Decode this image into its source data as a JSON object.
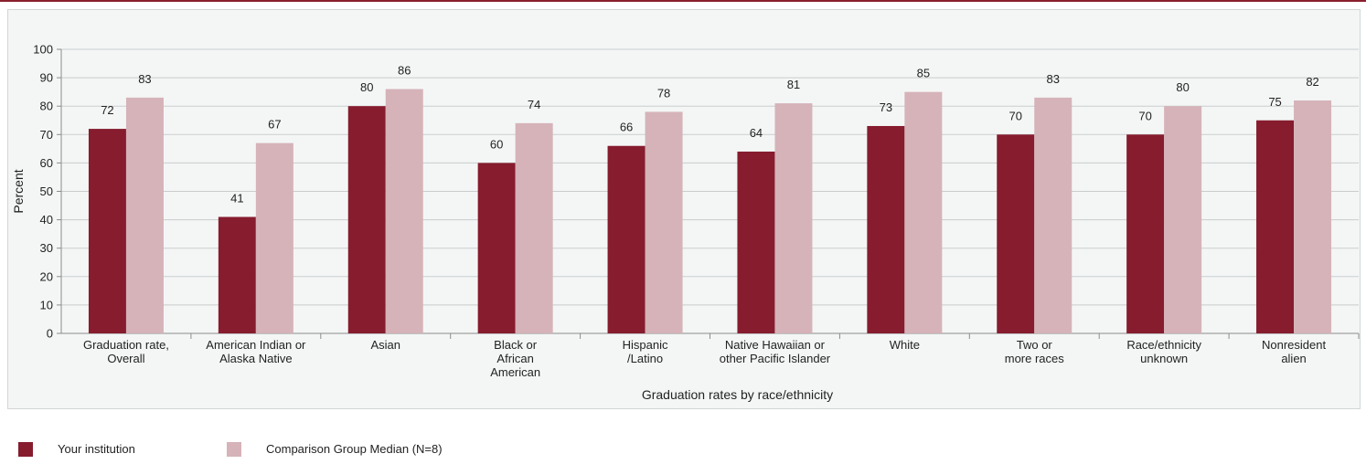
{
  "colors": {
    "primary": "#861c2e",
    "comparison": "#d5b3b9",
    "grid": "#c9cdcd",
    "axis": "#8c8c8c"
  },
  "legend": {
    "items": [
      {
        "label": "Your institution",
        "color": "#861c2e"
      },
      {
        "label": "Comparison Group Median (N=8)",
        "color": "#d5b3b9"
      }
    ]
  },
  "chart_data": {
    "type": "bar",
    "xlabel": "Graduation rates by race/ethnicity",
    "ylabel": "Percent",
    "ylim": [
      0,
      100
    ],
    "yticks": [
      0,
      10,
      20,
      30,
      40,
      50,
      60,
      70,
      80,
      90,
      100
    ],
    "grid": true,
    "legend_position": "bottom-left",
    "categories": [
      [
        "Graduation rate,",
        "Overall"
      ],
      [
        "American Indian or",
        "Alaska Native"
      ],
      [
        "Asian"
      ],
      [
        "Black or",
        "African",
        "American"
      ],
      [
        "Hispanic",
        "/Latino"
      ],
      [
        "Native Hawaiian or",
        "other Pacific Islander"
      ],
      [
        "White"
      ],
      [
        "Two or",
        "more races"
      ],
      [
        "Race/ethnicity",
        "unknown"
      ],
      [
        "Nonresident",
        "alien"
      ]
    ],
    "series": [
      {
        "name": "Your institution",
        "color": "#861c2e",
        "values": [
          72,
          41,
          80,
          60,
          66,
          64,
          73,
          70,
          70,
          75
        ]
      },
      {
        "name": "Comparison Group Median (N=8)",
        "color": "#d5b3b9",
        "values": [
          83,
          67,
          86,
          74,
          78,
          81,
          85,
          83,
          80,
          82
        ]
      }
    ]
  }
}
